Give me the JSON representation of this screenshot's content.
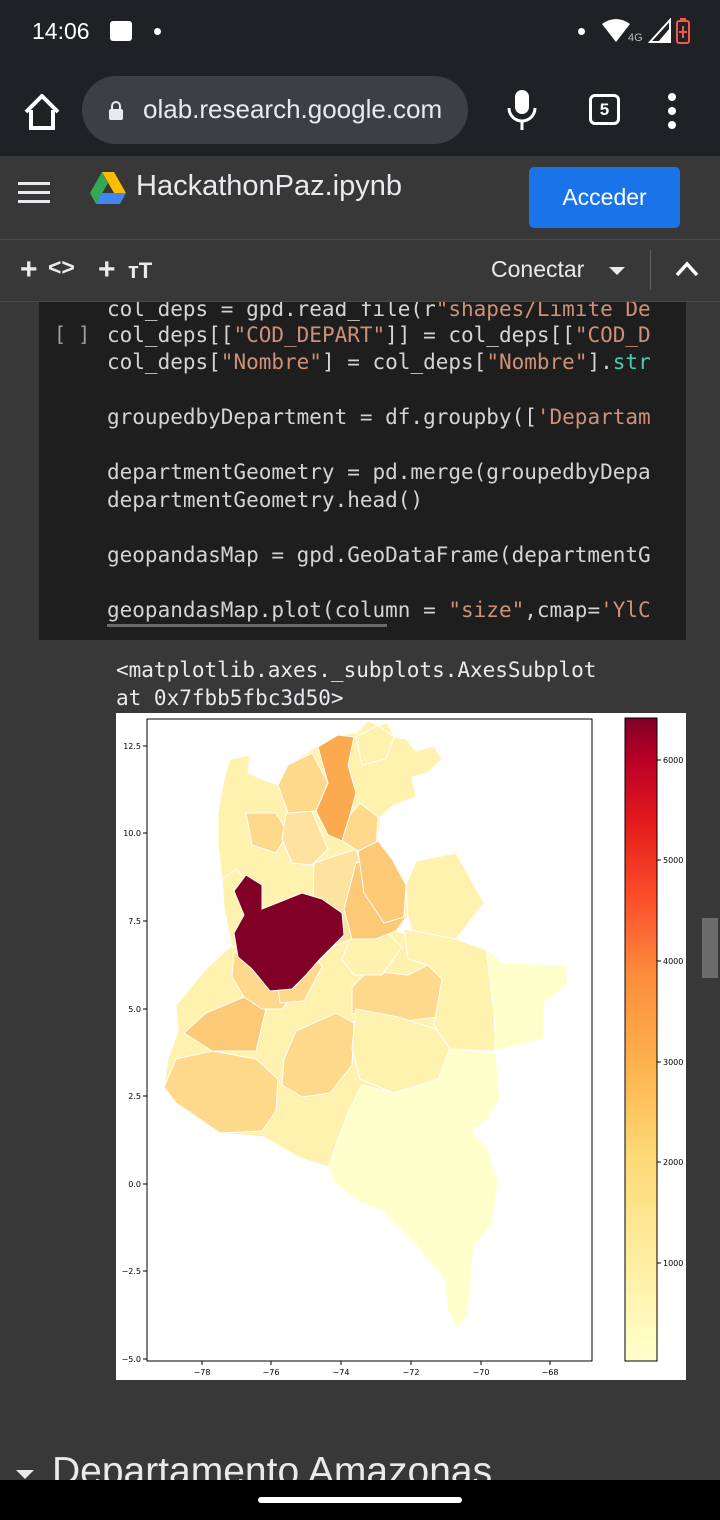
{
  "status_bar": {
    "time": "14:06",
    "network": "4G"
  },
  "browser": {
    "url": "olab.research.google.com",
    "tab_count": "5"
  },
  "colab": {
    "notebook_title": "HackathonPaz.ipynb",
    "acceder_label": "Acceder",
    "connect_label": "Conectar",
    "run_indicator": "[ ]"
  },
  "code": {
    "line1_a": "col_deps = gpd.read_file(r",
    "line1_s": "\"shapes/Limite De",
    "line2_a": "col_deps[[",
    "line2_s1": "\"COD_DEPART\"",
    "line2_b": "]] = col_deps[[",
    "line2_s2": "\"COD_D",
    "line3_a": "col_deps[",
    "line3_s": "\"Nombre\"",
    "line3_b": "] = col_deps[",
    "line3_s2": "\"Nombre\"",
    "line3_c": "].",
    "line3_f": "str",
    "line4_a": "groupedbyDepartment = df.groupby([",
    "line4_s": "'Departam",
    "line5": "departmentGeometry = pd.merge(groupedbyDepa",
    "line6": "departmentGeometry.head()",
    "line7": "geopandasMap = gpd.GeoDataFrame(departmentG",
    "line8_a": "geopandasMap.plot(column = ",
    "line8_s1": "\"size\"",
    "line8_b": ",cmap=",
    "line8_s2": "'YlC"
  },
  "output": {
    "line1": "<matplotlib.axes._subplots.AxesSubplot",
    "line2": "at 0x7fbb5fbc3d50>"
  },
  "map_plot": {
    "y_ticks": [
      "12.5",
      "10.0",
      "7.5",
      "5.0",
      "2.5",
      "0.0",
      "−2.5",
      "−5.0"
    ],
    "x_ticks": [
      "−78",
      "−76",
      "−74",
      "−72",
      "−70",
      "−68"
    ],
    "colorbar_ticks": [
      "6000",
      "5000",
      "4000",
      "3000",
      "2000",
      "1000"
    ],
    "cmap": "YlOrRd"
  },
  "section_heading": "Departamento Amazonas"
}
